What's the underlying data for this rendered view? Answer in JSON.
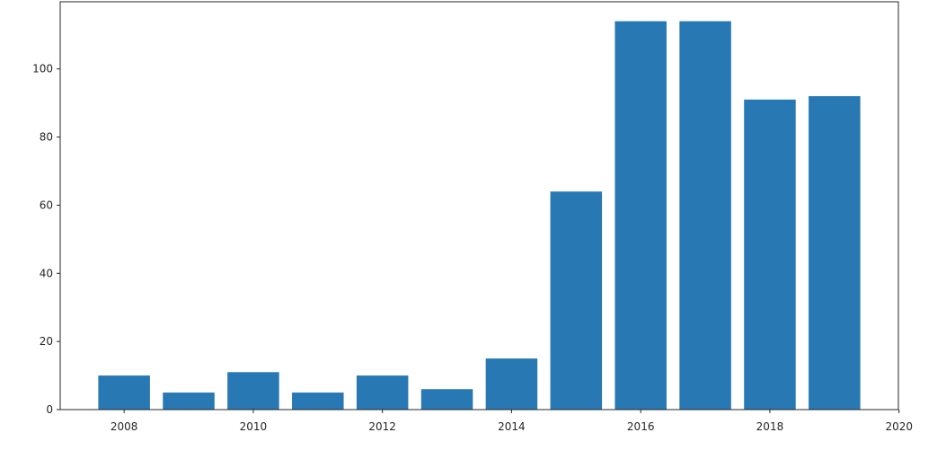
{
  "chart_data": {
    "type": "bar",
    "x": [
      2008,
      2009,
      2010,
      2011,
      2012,
      2013,
      2014,
      2015,
      2016,
      2017,
      2018,
      2019
    ],
    "values": [
      10,
      5,
      11,
      5,
      10,
      6,
      15,
      64,
      114,
      114,
      91,
      92
    ],
    "color": "#2878b4",
    "xlim": [
      2007.01,
      2019.99
    ],
    "xticks": [
      2008,
      2010,
      2012,
      2014,
      2016,
      2018,
      2020
    ],
    "ylim": [
      0,
      119.7
    ],
    "yticks": [
      0,
      20,
      40,
      60,
      80,
      100
    ],
    "grid": false
  }
}
